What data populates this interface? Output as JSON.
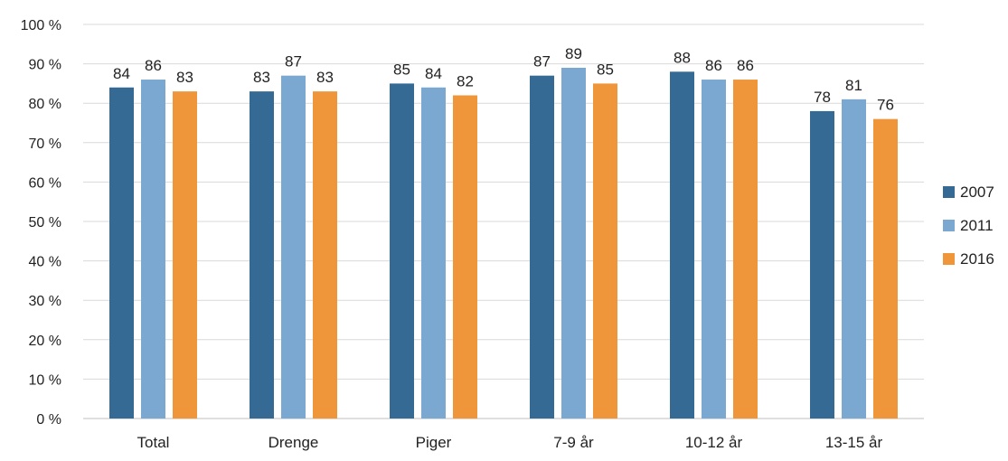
{
  "chart_data": {
    "type": "bar",
    "categories": [
      "Total",
      "Drenge",
      "Piger",
      "7-9 år",
      "10-12 år",
      "13-15 år"
    ],
    "series": [
      {
        "name": "2007",
        "values": [
          84,
          83,
          85,
          87,
          88,
          78
        ],
        "color": "#346a93"
      },
      {
        "name": "2011",
        "values": [
          86,
          87,
          84,
          89,
          86,
          81
        ],
        "color": "#7aa8d0"
      },
      {
        "name": "2016",
        "values": [
          83,
          83,
          82,
          85,
          86,
          76
        ],
        "color": "#f0963a"
      }
    ],
    "y_ticks": [
      "0 %",
      "10 %",
      "20 %",
      "30 %",
      "40 %",
      "50 %",
      "60 %",
      "70 %",
      "80 %",
      "90 %",
      "100 %"
    ],
    "ylim": [
      0,
      100
    ],
    "grid": true,
    "gridline_color": "#d9d9d9",
    "legend_position": "right",
    "title": "",
    "xlabel": "",
    "ylabel": ""
  }
}
